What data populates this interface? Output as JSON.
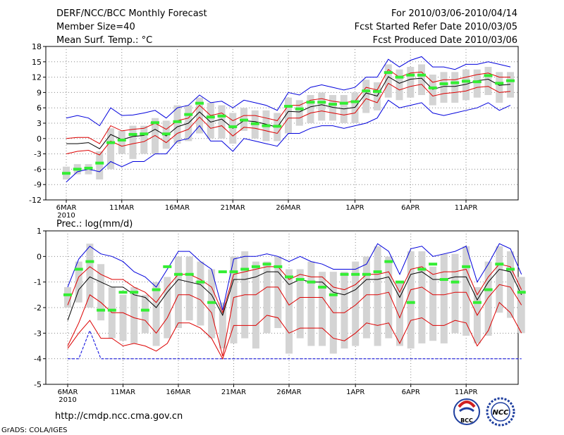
{
  "header": {
    "title": "DERF/NCC/BCC Monthly Forecast",
    "member_size": "Member Size=40",
    "variable": "Mean Surf. Temp.: °C",
    "period": "For 2010/03/06-2010/04/14",
    "refer_date": "Fcst Started Refer Date 2010/03/05",
    "produced_date": "Fcst Produced Date 2010/03/06"
  },
  "footer": {
    "url": "http://cmdp.ncc.cma.gov.cn",
    "credit": "GrADS: COLA/IGES",
    "logo_bcc": "BCC",
    "logo_ncc": "NCC"
  },
  "colors": {
    "envelope": "#0000dd",
    "spread": "#dd0000",
    "mean": "#000000",
    "box": "#d4d4d4",
    "median": "#33ee33"
  },
  "chart_data": [
    {
      "type": "line",
      "title": "Mean Surf. Temp.: °C",
      "ylim": [
        -12,
        18
      ],
      "yticks": [
        18,
        15,
        12,
        9,
        6,
        3,
        0,
        -3,
        -6,
        -9,
        -12
      ],
      "ytick_labels": [
        "18",
        "15",
        "12",
        "9",
        "6",
        "3",
        "0",
        "-3",
        "-6",
        "-9",
        "-12"
      ],
      "xticks": [
        {
          "day": 0,
          "label": "6MAR"
        },
        {
          "day": 5,
          "label": "11MAR"
        },
        {
          "day": 10,
          "label": "16MAR"
        },
        {
          "day": 15,
          "label": "21MAR"
        },
        {
          "day": 20,
          "label": "26MAR"
        },
        {
          "day": 26,
          "label": "1APR"
        },
        {
          "day": 31,
          "label": "6APR"
        },
        {
          "day": 36,
          "label": "11APR"
        }
      ],
      "x_year_label": "2010",
      "series": [
        {
          "name": "max",
          "values": [
            4,
            4.5,
            4,
            2.5,
            6,
            4.5,
            4.6,
            5,
            5.5,
            4,
            6,
            6.5,
            8.5,
            7,
            7.3,
            6,
            7.5,
            7,
            6.5,
            5.5,
            9,
            8.5,
            10,
            10.5,
            10,
            9.5,
            10,
            12,
            12,
            15.5,
            14,
            15.3,
            16,
            14,
            14,
            13.5,
            14.5,
            14.5,
            15,
            14.5,
            14
          ]
        },
        {
          "name": "upper",
          "values": [
            0,
            0.2,
            0.2,
            -1,
            2.5,
            1.5,
            1.8,
            2,
            3,
            1.8,
            3.5,
            4,
            6.5,
            4.5,
            5,
            3.5,
            4.5,
            4.5,
            4,
            3.5,
            6.5,
            6.5,
            7.5,
            7.8,
            7.3,
            7,
            7.3,
            10,
            9.5,
            13.5,
            12,
            12.8,
            13,
            11,
            11.5,
            11.5,
            12,
            12.5,
            12.8,
            12,
            12
          ]
        },
        {
          "name": "mean",
          "values": [
            -1,
            -1,
            -0.8,
            -2,
            0.8,
            -0.2,
            0.4,
            0.6,
            1.8,
            0.5,
            2.3,
            3,
            5.2,
            3.2,
            3.8,
            2,
            3.5,
            3.3,
            2.8,
            2.2,
            5.3,
            5.2,
            6.2,
            6.6,
            6.1,
            5.8,
            6.1,
            8.9,
            8.3,
            12.1,
            10.8,
            11.6,
            11.8,
            9.6,
            10.2,
            10.2,
            10.6,
            11.3,
            11.6,
            10.4,
            10.6
          ]
        },
        {
          "name": "lower",
          "values": [
            -3,
            -2.5,
            -2.3,
            -3.2,
            -0.5,
            -1.5,
            -1,
            -0.6,
            0.6,
            -0.8,
            1,
            1.8,
            4.2,
            2,
            2.5,
            0.5,
            2.2,
            2,
            1.5,
            1,
            4,
            4,
            5,
            5.4,
            5,
            4.6,
            5,
            7.8,
            7,
            10.8,
            9.5,
            10.2,
            10.6,
            8.3,
            8.8,
            9,
            9.3,
            10,
            10.2,
            9,
            9.2
          ]
        },
        {
          "name": "min",
          "values": [
            -8.5,
            -6.5,
            -6,
            -6.5,
            -4.5,
            -5.5,
            -4.5,
            -4.5,
            -3,
            -3,
            -0.5,
            0,
            2.5,
            -0.5,
            -0.5,
            -2.5,
            0,
            -0.5,
            -1,
            -1.5,
            1,
            1,
            2,
            2.5,
            2.5,
            2,
            2.5,
            3,
            4,
            7.5,
            6,
            6.5,
            7,
            5,
            4.5,
            5,
            5.5,
            6,
            7,
            5.5,
            6.5
          ]
        }
      ],
      "boxes": [
        [
          -8,
          -5.5
        ],
        [
          -7,
          -5
        ],
        [
          -7,
          -5
        ],
        [
          -8,
          -2.5
        ],
        [
          -6,
          2
        ],
        [
          -3,
          1.5
        ],
        [
          -4,
          2.5
        ],
        [
          -3,
          2.5
        ],
        [
          -3,
          4
        ],
        [
          -2,
          3.5
        ],
        [
          -1,
          6.5
        ],
        [
          -0.5,
          6.5
        ],
        [
          1,
          8
        ],
        [
          0,
          7
        ],
        [
          0,
          6.5
        ],
        [
          -1,
          5
        ],
        [
          1.5,
          6
        ],
        [
          0,
          5.5
        ],
        [
          -0.5,
          5.5
        ],
        [
          -0.5,
          5
        ],
        [
          1,
          8
        ],
        [
          2.5,
          7.5
        ],
        [
          3,
          8.5
        ],
        [
          3.5,
          9
        ],
        [
          3.5,
          8.5
        ],
        [
          3,
          8.5
        ],
        [
          3,
          9
        ],
        [
          5,
          11.5
        ],
        [
          5.5,
          11
        ],
        [
          8,
          14.5
        ],
        [
          7.5,
          13.5
        ],
        [
          8,
          14
        ],
        [
          8.5,
          14.5
        ],
        [
          6.5,
          12.5
        ],
        [
          7,
          13
        ],
        [
          7,
          13
        ],
        [
          7.5,
          13.5
        ],
        [
          8,
          13.5
        ],
        [
          8.5,
          14
        ],
        [
          7,
          13
        ],
        [
          8,
          13
        ]
      ],
      "medians": [
        -6.8,
        -6,
        -5.8,
        -4.8,
        -0.8,
        -0.3,
        0.8,
        0.9,
        3.1,
        0.9,
        3.3,
        4.7,
        6.9,
        4.2,
        4.4,
        2.3,
        3.6,
        2.9,
        2.5,
        2.4,
        6.3,
        5.8,
        7.1,
        7.1,
        6.7,
        6.9,
        7.2,
        9.3,
        9.2,
        12.9,
        12,
        12.4,
        12.4,
        9.9,
        10.7,
        10.9,
        11.2,
        11.1,
        12.3,
        10.8,
        11.3
      ]
    },
    {
      "type": "line",
      "title": "Prec.: log(mm/d)",
      "ylim": [
        -5,
        1
      ],
      "yticks": [
        1,
        0,
        -1,
        -2,
        -3,
        -4,
        -5
      ],
      "ytick_labels": [
        "1",
        "0",
        "-1",
        "-2",
        "-3",
        "-4",
        "-5"
      ],
      "xticks": [
        {
          "day": 0,
          "label": "6MAR"
        },
        {
          "day": 5,
          "label": "11MAR"
        },
        {
          "day": 10,
          "label": "16MAR"
        },
        {
          "day": 15,
          "label": "21MAR"
        },
        {
          "day": 20,
          "label": "26MAR"
        },
        {
          "day": 26,
          "label": "1APR"
        },
        {
          "day": 31,
          "label": "6APR"
        },
        {
          "day": 36,
          "label": "11APR"
        }
      ],
      "x_year_label": "2010",
      "series": [
        {
          "name": "max",
          "values": [
            -1.2,
            -0.1,
            0.4,
            0.1,
            0,
            -0.2,
            -0.6,
            -0.8,
            -1.2,
            -0.5,
            0.2,
            0.2,
            -0.2,
            -0.5,
            -2.1,
            -0.1,
            0,
            0,
            0.1,
            0,
            -0.2,
            0,
            -0.2,
            -0.3,
            -0.5,
            -0.5,
            -0.5,
            -0.3,
            0.5,
            0.2,
            -0.7,
            0.3,
            0.4,
            0,
            0.1,
            0.2,
            0.4,
            -1,
            -0.3,
            0.5,
            0.3,
            -0.7
          ]
        },
        {
          "name": "upper",
          "values": [
            -1.9,
            -0.8,
            -0.4,
            -0.7,
            -0.9,
            -0.9,
            -1.2,
            -1.4,
            -1.8,
            -1.2,
            -0.7,
            -0.7,
            -0.9,
            -1.2,
            -2.2,
            -0.7,
            -0.6,
            -0.5,
            -0.4,
            -0.4,
            -0.9,
            -0.7,
            -0.8,
            -0.8,
            -1.2,
            -1.3,
            -1.1,
            -0.7,
            -0.7,
            -0.6,
            -1.4,
            -0.5,
            -0.4,
            -0.7,
            -0.6,
            -0.6,
            -0.5,
            -1.5,
            -0.8,
            -0.3,
            -0.4,
            -1.3
          ]
        },
        {
          "name": "mean",
          "values": [
            -2.5,
            -1.3,
            -0.8,
            -1,
            -1.2,
            -1.2,
            -1.5,
            -1.6,
            -2,
            -1.4,
            -0.9,
            -1,
            -1.1,
            -1.5,
            -2.3,
            -0.9,
            -0.9,
            -0.8,
            -0.6,
            -0.6,
            -1.1,
            -0.9,
            -1,
            -1,
            -1.4,
            -1.5,
            -1.3,
            -0.9,
            -0.9,
            -0.8,
            -1.6,
            -0.7,
            -0.6,
            -0.9,
            -0.9,
            -0.8,
            -0.8,
            -1.7,
            -1,
            -0.5,
            -0.6,
            -1.5
          ]
        },
        {
          "name": "lower",
          "values": [
            -3.5,
            -2.6,
            -1.5,
            -1.8,
            -2.2,
            -2.2,
            -2.4,
            -2.5,
            -3,
            -2.4,
            -1.5,
            -1.5,
            -1.7,
            -2.2,
            -3.9,
            -1.6,
            -1.5,
            -1.5,
            -1.2,
            -1.2,
            -1.9,
            -1.6,
            -1.6,
            -1.6,
            -2.2,
            -2.2,
            -1.9,
            -1.5,
            -1.5,
            -1.4,
            -2.4,
            -1.3,
            -1.2,
            -1.5,
            -1.5,
            -1.4,
            -1.4,
            -2.3,
            -1.6,
            -1.1,
            -1.2,
            -1.9
          ]
        },
        {
          "name": "min",
          "values": [
            -4,
            -4,
            -2.9,
            -4,
            -4,
            -4,
            -4,
            -4,
            -4,
            -4,
            -4,
            -4,
            -4,
            -4,
            -4,
            -4,
            -4,
            -4,
            -4,
            -4,
            -4,
            -4,
            -4,
            -4,
            -4,
            -4,
            -4,
            -4,
            -4,
            -4,
            -4,
            -4,
            -4,
            -4,
            -4,
            -4,
            -4,
            -4,
            -4,
            -4,
            -4,
            -4
          ]
        },
        {
          "name": "lowest",
          "values": [
            -3.6,
            -3,
            -2.5,
            -3.2,
            -3.2,
            -3.5,
            -3.4,
            -3.5,
            -3.7,
            -3.4,
            -2.6,
            -2.6,
            -2.8,
            -3.2,
            -4,
            -2.7,
            -2.7,
            -2.7,
            -2.3,
            -2.4,
            -3,
            -2.8,
            -2.8,
            -2.8,
            -3.2,
            -3.3,
            -3,
            -2.6,
            -2.7,
            -2.6,
            -3.4,
            -2.5,
            -2.4,
            -2.7,
            -2.7,
            -2.5,
            -2.6,
            -3.5,
            -2.9,
            -1.8,
            -2.2,
            -3
          ]
        }
      ],
      "boxes": [
        [
          -2,
          -1.2
        ],
        [
          -1.8,
          -0.2
        ],
        [
          -2,
          0.5
        ],
        [
          -2.5,
          -0.3
        ],
        [
          -3.2,
          -1.2
        ],
        [
          -3.3,
          -1.5
        ],
        [
          -3.4,
          -1.2
        ],
        [
          -3,
          -1.5
        ],
        [
          -3.5,
          -1
        ],
        [
          -3.2,
          -0.8
        ],
        [
          -2.8,
          0
        ],
        [
          -2.5,
          0
        ],
        [
          -2.7,
          -0.2
        ],
        [
          -3.2,
          -0.5
        ],
        [
          -3.6,
          -1.8
        ],
        [
          -3.4,
          0
        ],
        [
          -3.2,
          0.2
        ],
        [
          -3.6,
          -0.2
        ],
        [
          -3,
          -0.2
        ],
        [
          -2.8,
          0
        ],
        [
          -3.8,
          -0.5
        ],
        [
          -3.2,
          -0.5
        ],
        [
          -3.5,
          -0.2
        ],
        [
          -3.5,
          -0.6
        ],
        [
          -3.8,
          -0.6
        ],
        [
          -3.6,
          -0.6
        ],
        [
          -3.5,
          -0.2
        ],
        [
          -3.2,
          0
        ],
        [
          -3.5,
          0.4
        ],
        [
          -3.2,
          0
        ],
        [
          -3.5,
          -1
        ],
        [
          -3.6,
          0.2
        ],
        [
          -3.4,
          0.2
        ],
        [
          -3.3,
          -0.4
        ],
        [
          -3.4,
          0.1
        ],
        [
          -3,
          0.1
        ],
        [
          -3.1,
          0.4
        ],
        [
          -3.4,
          -1.2
        ],
        [
          -3.1,
          -0.2
        ],
        [
          -2.2,
          0.4
        ],
        [
          -2.4,
          0.2
        ],
        [
          -3,
          -0.8
        ]
      ],
      "medians": [
        -1.5,
        -0.5,
        -0.2,
        -2.1,
        -2.1,
        -1.4,
        -1.4,
        -2.1,
        -1.3,
        -0.4,
        -0.7,
        -0.7,
        -1,
        -1.8,
        -0.6,
        -0.6,
        -0.5,
        -0.4,
        -0.3,
        -0.4,
        -0.8,
        -0.9,
        -1,
        -1.2,
        -1.5,
        -0.7,
        -0.7,
        -0.7,
        -0.6,
        -0.2,
        -1,
        -1.8,
        -0.5,
        -0.3,
        -0.9,
        -1,
        -0.4,
        -1.8,
        -1.3,
        -0.3,
        -0.5,
        -1.4
      ]
    }
  ]
}
